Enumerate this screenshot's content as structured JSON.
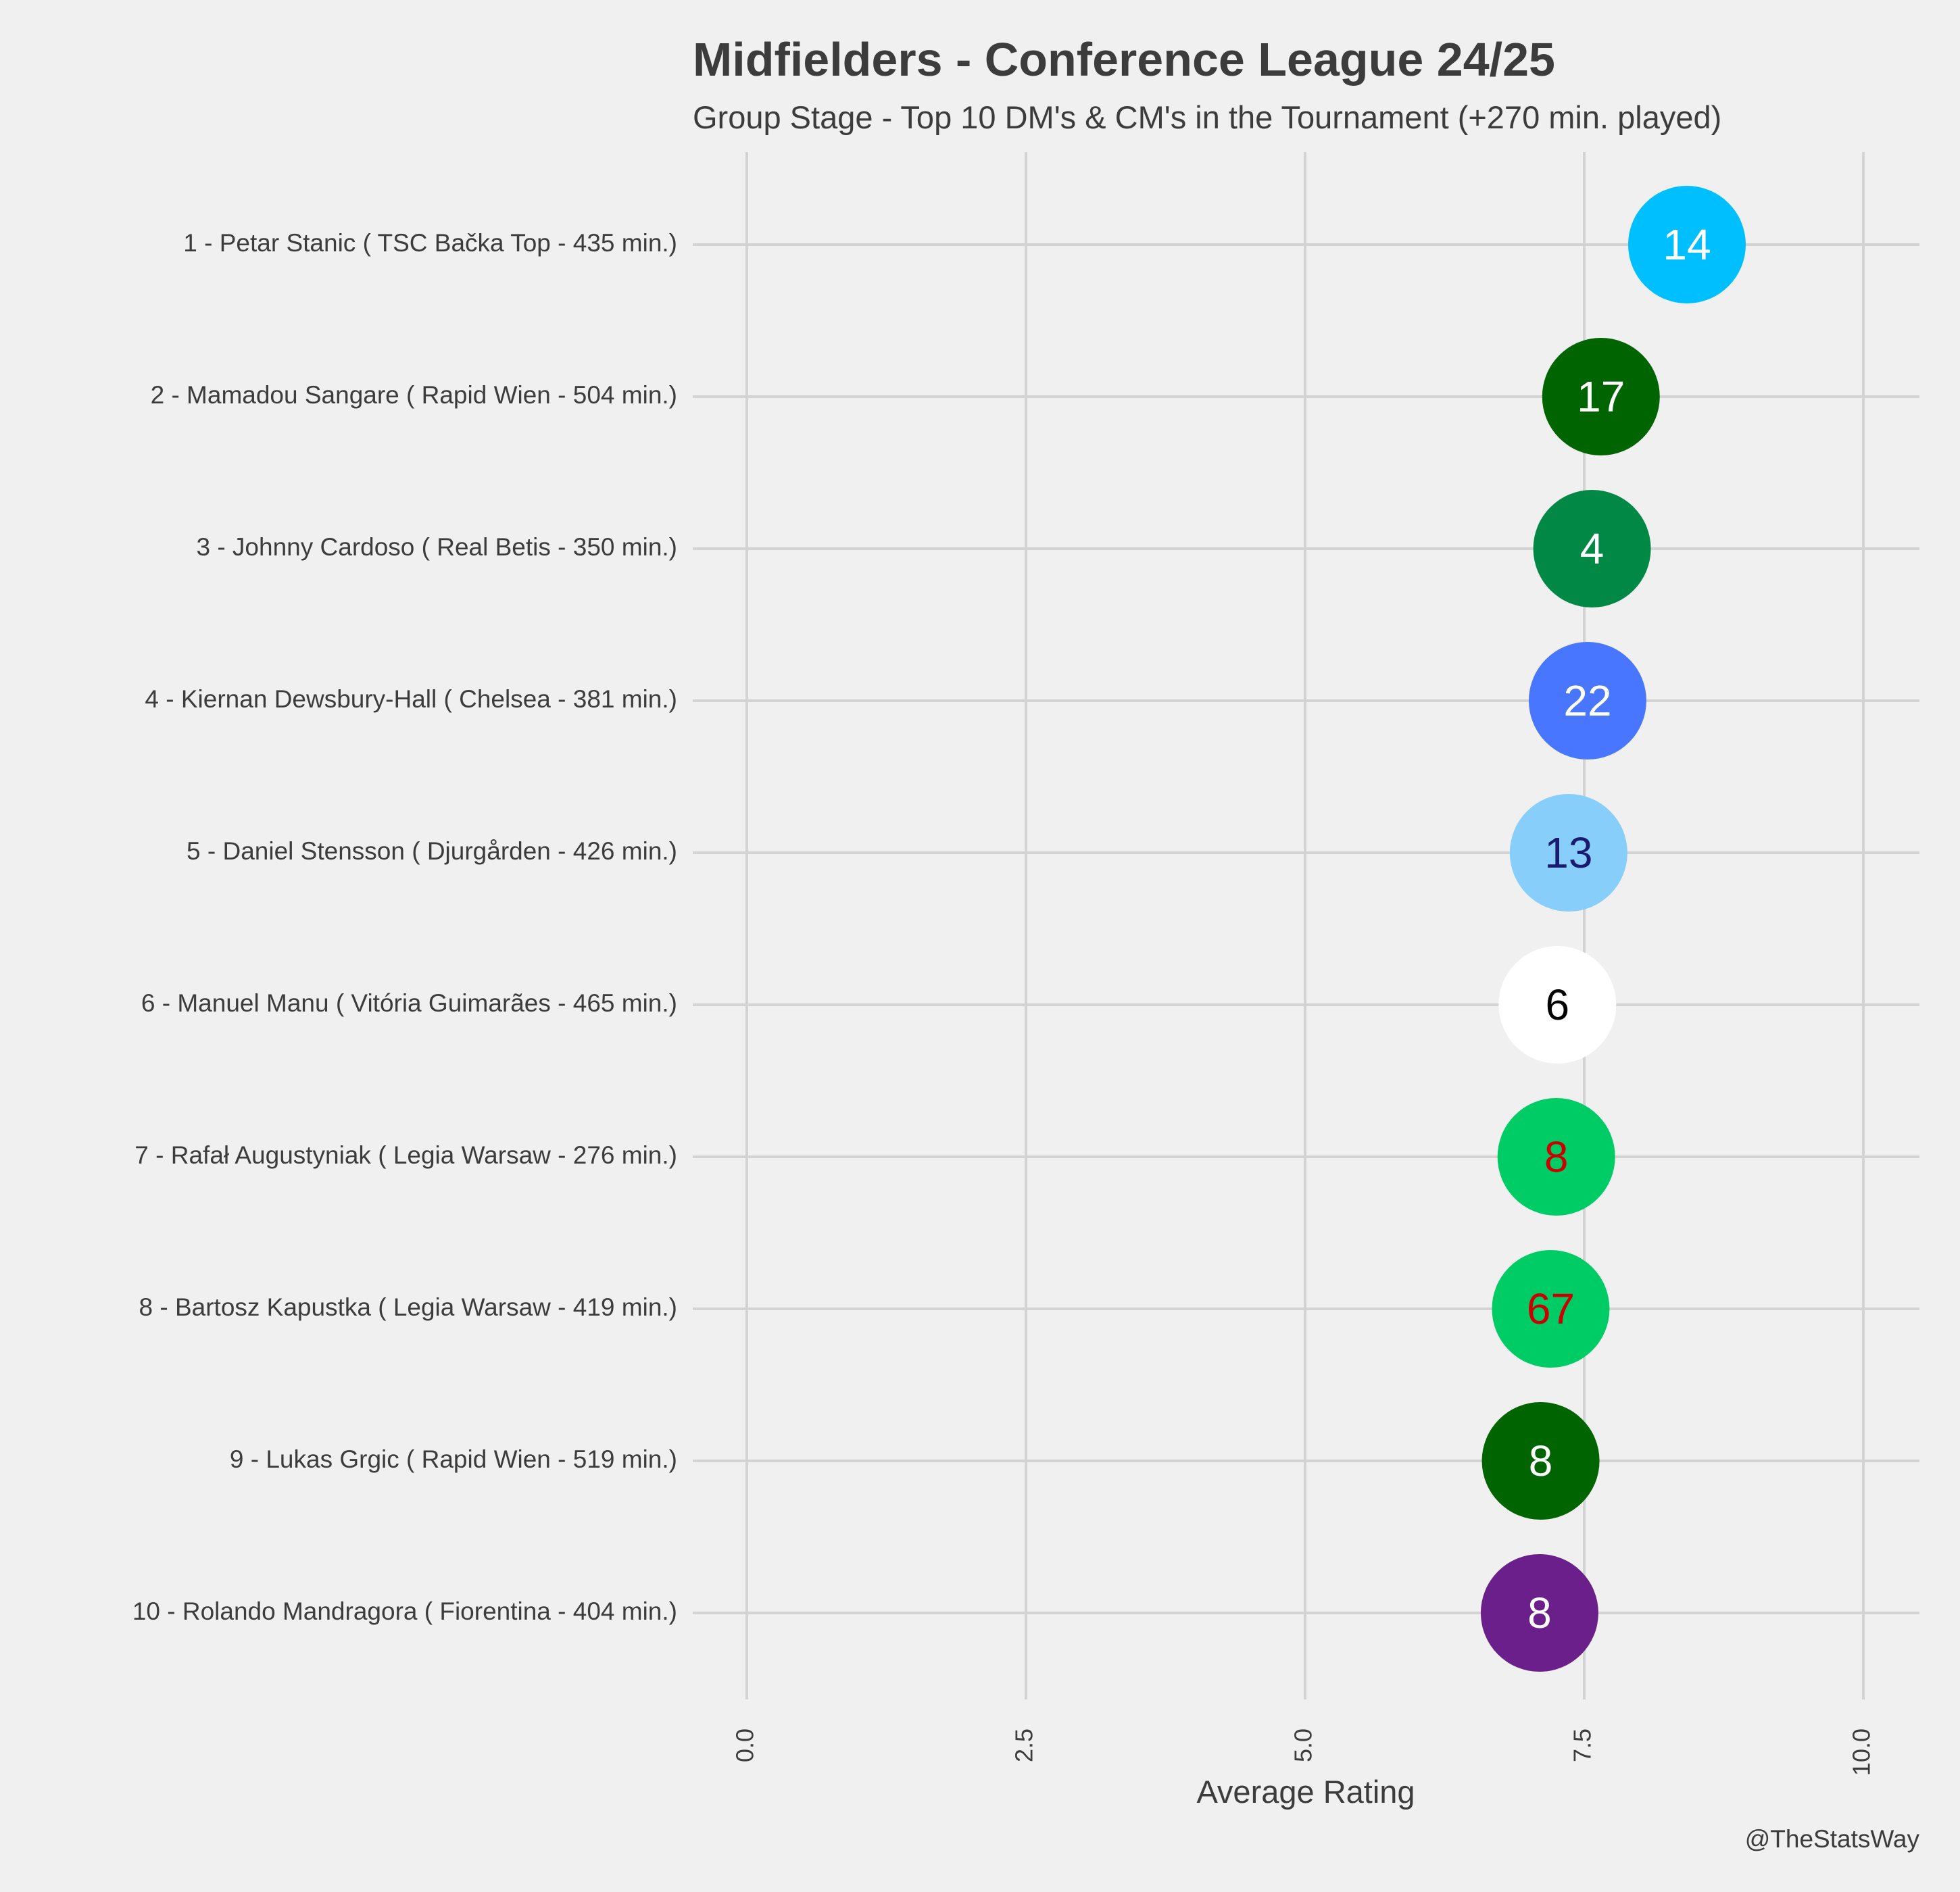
{
  "chart_data": {
    "type": "scatter",
    "title": "Midfielders - Conference League 24/25",
    "subtitle": "Group Stage - Top 10 DM's & CM's in the Tournament (+270 min. played)",
    "xlabel": "Average Rating",
    "ylabel": "",
    "xlim": [
      -0.25,
      10.5
    ],
    "xticks": [
      "0.0",
      "2.5",
      "5.0",
      "7.5",
      "10.0"
    ],
    "grid": true,
    "credit": "@TheStatsWay",
    "points": [
      {
        "label": "1 - Petar Stanic  ( TSC Bačka Top - 435 min.)",
        "x": 8.42,
        "number": "14",
        "color": "#00bfff",
        "text_color": "#ffffff"
      },
      {
        "label": "2 - Mamadou Sangare  ( Rapid Wien - 504 min.)",
        "x": 7.65,
        "number": "17",
        "color": "#006400",
        "text_color": "#ffffff"
      },
      {
        "label": "3 - Johnny Cardoso  ( Real Betis - 350 min.)",
        "x": 7.57,
        "number": "4",
        "color": "#008844",
        "text_color": "#ffffff"
      },
      {
        "label": "4 - Kiernan Dewsbury-Hall  ( Chelsea - 381 min.)",
        "x": 7.53,
        "number": "22",
        "color": "#4876ff",
        "text_color": "#ffffff"
      },
      {
        "label": "5 - Daniel Stensson  ( Djurgården - 426 min.)",
        "x": 7.36,
        "number": "13",
        "color": "#87cefa",
        "text_color": "#1a1a6e"
      },
      {
        "label": "6 - Manuel Manu  ( Vitória Guimarães - 465 min.)",
        "x": 7.26,
        "number": "6",
        "color": "#ffffff",
        "text_color": "#000000"
      },
      {
        "label": "7 - Rafał Augustyniak  ( Legia Warsaw - 276 min.)",
        "x": 7.25,
        "number": "8",
        "color": "#00cc66",
        "text_color": "#cc0000"
      },
      {
        "label": "8 - Bartosz Kapustka  ( Legia Warsaw - 419 min.)",
        "x": 7.2,
        "number": "67",
        "color": "#00cc66",
        "text_color": "#cc0000"
      },
      {
        "label": "9 - Lukas Grgic  ( Rapid Wien - 519 min.)",
        "x": 7.11,
        "number": "8",
        "color": "#006400",
        "text_color": "#ffffff"
      },
      {
        "label": "10 - Rolando Mandragora  ( Fiorentina - 404 min.)",
        "x": 7.1,
        "number": "8",
        "color": "#6a1f8a",
        "text_color": "#ffffff"
      }
    ]
  }
}
